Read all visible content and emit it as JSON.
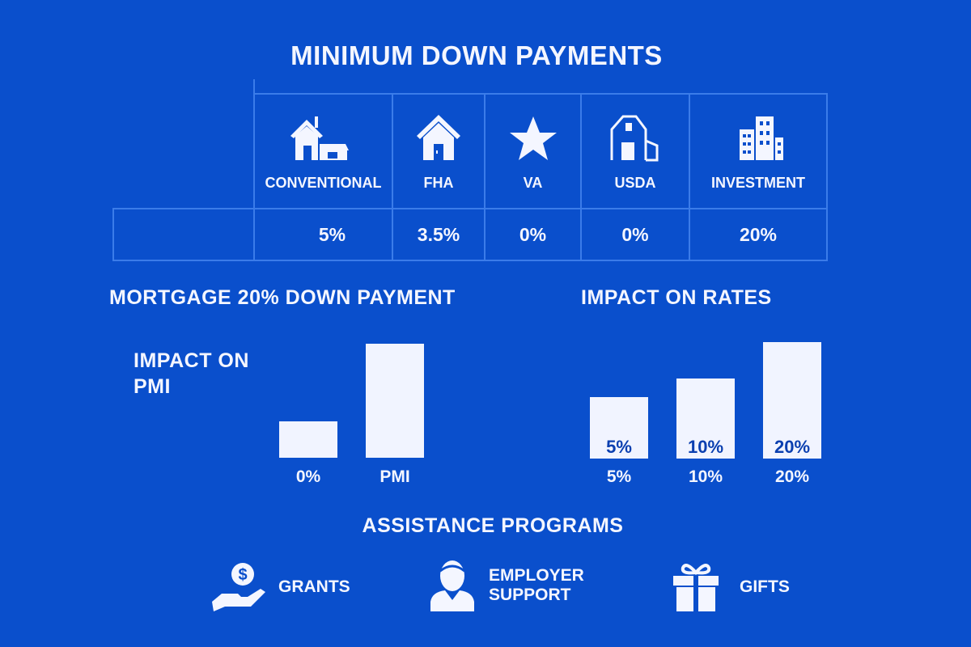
{
  "title": "MINIMUM DOWN PAYMENTS",
  "loan_types": [
    {
      "label": "CONVENTIONAL",
      "icon": "house-with-garage-icon",
      "down_payment": "5%"
    },
    {
      "label": "FHA",
      "icon": "house-icon",
      "down_payment": "3.5%"
    },
    {
      "label": "VA",
      "icon": "star-icon",
      "down_payment": "0%"
    },
    {
      "label": "USDA",
      "icon": "barn-icon",
      "down_payment": "0%"
    },
    {
      "label": "INVESTMENT",
      "icon": "buildings-icon",
      "down_payment": "20%"
    }
  ],
  "pmi_section": {
    "title": "MORTGAGE 20% DOWN PAYMENT",
    "subtitle": "IMPACT ON PMI",
    "bars": [
      {
        "label": "0%",
        "relative_height": 0.32
      },
      {
        "label": "PMI",
        "relative_height": 1.0
      }
    ]
  },
  "rates_section": {
    "title": "IMPACT ON RATES",
    "bars": [
      {
        "label": "5%",
        "inner_label": "5%",
        "relative_height": 0.53
      },
      {
        "label": "10%",
        "inner_label": "10%",
        "relative_height": 0.69
      },
      {
        "label": "20%",
        "inner_label": "20%",
        "relative_height": 1.0
      }
    ]
  },
  "assistance": {
    "title": "ASSISTANCE PROGRAMS",
    "programs": [
      {
        "label": "GRANTS",
        "icon": "hand-coin-icon"
      },
      {
        "label": "EMPLOYER SUPPORT",
        "icon": "person-icon"
      },
      {
        "label": "GIFTS",
        "icon": "gift-icon"
      }
    ]
  },
  "colors": {
    "background": "#0a4fcc",
    "grid": "#3b7ce9",
    "foreground": "#f1f4ff"
  }
}
